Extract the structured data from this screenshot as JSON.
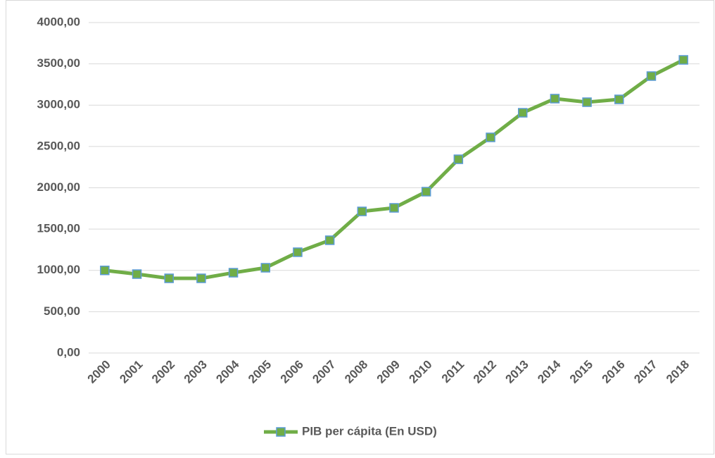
{
  "chart_data": {
    "type": "line",
    "categories": [
      "2000",
      "2001",
      "2002",
      "2003",
      "2004",
      "2005",
      "2006",
      "2007",
      "2008",
      "2009",
      "2010",
      "2011",
      "2012",
      "2013",
      "2014",
      "2015",
      "2016",
      "2017",
      "2018"
    ],
    "series": [
      {
        "name": "PIB per cápita (En USD)",
        "color": "#70ad47",
        "marker_edge_color": "#5b9bd5",
        "values": [
          1000,
          955,
          904,
          904,
          972,
          1032,
          1220,
          1365,
          1714,
          1757,
          1953,
          2345,
          2610,
          2908,
          3079,
          3036,
          3070,
          3352,
          3548
        ]
      }
    ],
    "ylim": [
      0,
      4000
    ],
    "yticks": [
      {
        "value": 0,
        "label": "0,00"
      },
      {
        "value": 500,
        "label": "500,00"
      },
      {
        "value": 1000,
        "label": "1000,00"
      },
      {
        "value": 1500,
        "label": "1500,00"
      },
      {
        "value": 2000,
        "label": "2000,00"
      },
      {
        "value": 2500,
        "label": "2500,00"
      },
      {
        "value": 3000,
        "label": "3000,00"
      },
      {
        "value": 3500,
        "label": "3500,00"
      },
      {
        "value": 4000,
        "label": "4000,00"
      }
    ],
    "grid": true,
    "legend": "bottom"
  }
}
